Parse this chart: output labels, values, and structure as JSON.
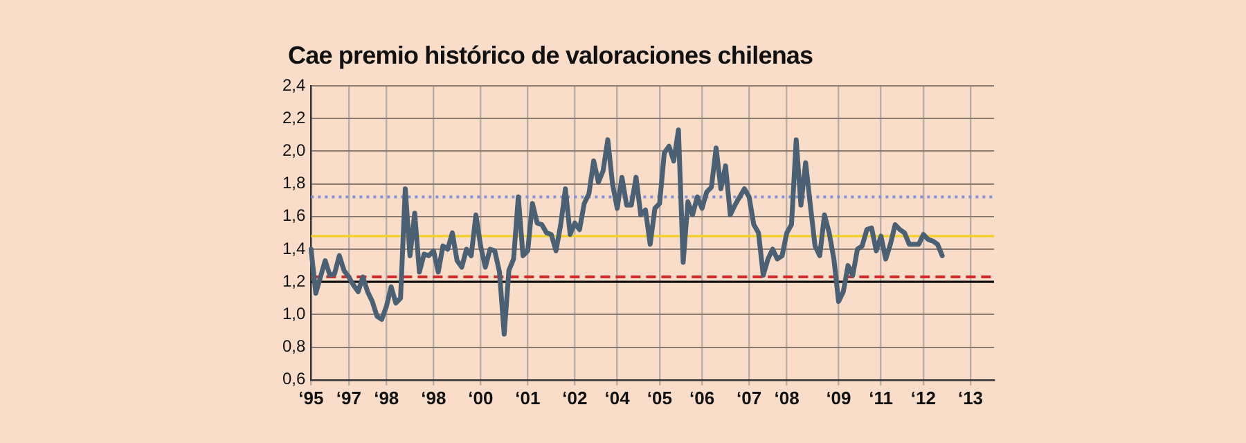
{
  "chart_data": {
    "type": "line",
    "title": "Cae premio histórico de valoraciones chilenas",
    "categories": [
      "‘95",
      null,
      null,
      null,
      null,
      null,
      null,
      null,
      "‘97",
      null,
      null,
      null,
      null,
      null,
      null,
      null,
      "‘98",
      null,
      null,
      null,
      null,
      null,
      null,
      null,
      null,
      null,
      "‘98",
      null,
      null,
      null,
      null,
      null,
      null,
      null,
      null,
      null,
      "‘00",
      null,
      null,
      null,
      null,
      null,
      null,
      null,
      null,
      null,
      "‘01",
      null,
      null,
      null,
      null,
      null,
      null,
      null,
      null,
      null,
      "‘02",
      null,
      null,
      null,
      null,
      null,
      null,
      null,
      null,
      "‘04",
      null,
      null,
      null,
      null,
      null,
      null,
      null,
      null,
      "‘05",
      null,
      null,
      null,
      null,
      null,
      null,
      null,
      null,
      "‘06",
      null,
      null,
      null,
      null,
      null,
      null,
      null,
      null,
      null,
      "‘07",
      null,
      null,
      null,
      null,
      null,
      null,
      null,
      "‘08",
      null,
      null,
      null,
      null,
      null,
      null,
      null,
      null,
      null,
      null,
      "‘09",
      null,
      null,
      null,
      null,
      null,
      null,
      null,
      null,
      "‘11",
      null,
      null,
      null,
      null,
      null,
      null,
      null,
      null,
      "‘12",
      null,
      null,
      null,
      null,
      null,
      null,
      null,
      null,
      null,
      "‘13",
      null,
      null,
      null,
      null,
      null
    ],
    "ylim": [
      0.6,
      2.4
    ],
    "yticks": [
      {
        "value": 0.6,
        "label": "0,6"
      },
      {
        "value": 0.8,
        "label": "0,8"
      },
      {
        "value": 1.0,
        "label": "1,0"
      },
      {
        "value": 1.2,
        "label": "1,2"
      },
      {
        "value": 1.4,
        "label": "1,4"
      },
      {
        "value": 1.6,
        "label": "1,6"
      },
      {
        "value": 1.8,
        "label": "1,8"
      },
      {
        "value": 2.0,
        "label": "2,0"
      },
      {
        "value": 2.2,
        "label": "2,2"
      },
      {
        "value": 2.4,
        "label": "2,4"
      }
    ],
    "grid": true,
    "marker": "none",
    "line_style": "solid",
    "ref_lines": [
      {
        "axis": "y",
        "value": 1.72,
        "color": "#8193d6",
        "line_style": "dotted"
      },
      {
        "axis": "y",
        "value": 1.48,
        "color": "#f2d027",
        "line_style": "solid"
      },
      {
        "axis": "y",
        "value": 1.23,
        "color": "#d42a2a",
        "line_style": "dashed"
      },
      {
        "axis": "y",
        "value": 1.2,
        "color": "#111111",
        "line_style": "solid"
      }
    ],
    "series": [
      {
        "color": "#4a6075",
        "values": [
          1.4,
          1.13,
          1.23,
          1.33,
          1.24,
          1.25,
          1.36,
          1.27,
          1.23,
          1.18,
          1.14,
          1.23,
          1.14,
          1.08,
          0.99,
          0.97,
          1.05,
          1.17,
          1.07,
          1.1,
          1.77,
          1.36,
          1.62,
          1.26,
          1.37,
          1.36,
          1.39,
          1.26,
          1.42,
          1.4,
          1.5,
          1.33,
          1.29,
          1.4,
          1.36,
          1.61,
          1.42,
          1.29,
          1.4,
          1.39,
          1.26,
          0.88,
          1.27,
          1.34,
          1.72,
          1.36,
          1.39,
          1.68,
          1.56,
          1.55,
          1.5,
          1.49,
          1.39,
          1.55,
          1.77,
          1.49,
          1.56,
          1.52,
          1.68,
          1.74,
          1.94,
          1.81,
          1.88,
          2.07,
          1.8,
          1.65,
          1.84,
          1.67,
          1.67,
          1.84,
          1.61,
          1.64,
          1.43,
          1.65,
          1.68,
          1.99,
          2.03,
          1.94,
          2.13,
          1.32,
          1.69,
          1.61,
          1.72,
          1.65,
          1.75,
          1.78,
          2.02,
          1.77,
          1.91,
          1.61,
          1.67,
          1.72,
          1.77,
          1.72,
          1.55,
          1.5,
          1.24,
          1.34,
          1.4,
          1.34,
          1.36,
          1.5,
          1.55,
          2.07,
          1.67,
          1.93,
          1.67,
          1.42,
          1.36,
          1.61,
          1.5,
          1.34,
          1.08,
          1.14,
          1.3,
          1.24,
          1.4,
          1.42,
          1.52,
          1.53,
          1.39,
          1.48,
          1.34,
          1.43,
          1.55,
          1.52,
          1.5,
          1.43,
          1.43,
          1.43,
          1.49,
          1.46,
          1.45,
          1.43,
          1.36,
          null,
          null,
          null,
          null,
          null,
          null,
          null,
          null,
          null,
          null,
          null
        ]
      }
    ]
  }
}
